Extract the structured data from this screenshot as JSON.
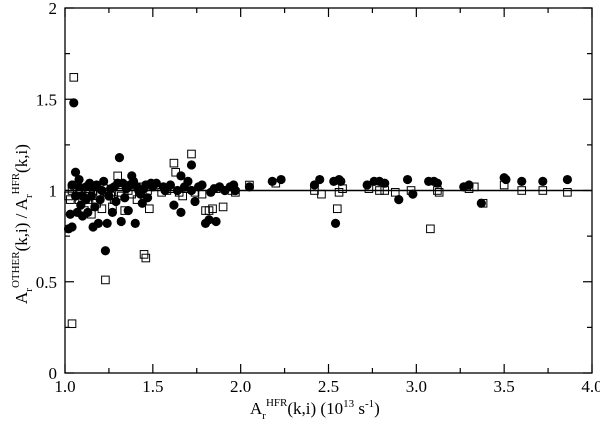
{
  "chart_data": {
    "type": "scatter",
    "title": "",
    "xlabel": {
      "base": "A",
      "sub": "r",
      "sup": "HFR",
      "tail": "(k,i) (10",
      "exp": "13",
      "units": " s",
      "units_exp": "-1",
      "close": ")"
    },
    "ylabel": {
      "a_base": "A",
      "a_sub": "r",
      "a_sup": "OTHER",
      "a_tail": "(k,i) / A",
      "b_sub": "r",
      "b_sup": "HFR",
      "b_tail": "(k,i)"
    },
    "xlim": [
      1.0,
      4.0
    ],
    "ylim": [
      0,
      2
    ],
    "xticks": [
      "1.0",
      "1.5",
      "2.0",
      "2.5",
      "3.0",
      "3.5",
      "4.0"
    ],
    "yticks": [
      "0",
      "0.5",
      "1",
      "1.5",
      "2"
    ],
    "reference_line_y": 1.0,
    "grid": false,
    "series": [
      {
        "marker": "filled-circle",
        "points": [
          [
            1.02,
            0.79
          ],
          [
            1.03,
            0.87
          ],
          [
            1.04,
            1.03
          ],
          [
            1.04,
            0.8
          ],
          [
            1.05,
            1.48
          ],
          [
            1.06,
            1.1
          ],
          [
            1.06,
            0.97
          ],
          [
            1.07,
            0.88
          ],
          [
            1.08,
            1.02
          ],
          [
            1.08,
            1.06
          ],
          [
            1.09,
            0.92
          ],
          [
            1.1,
            0.97
          ],
          [
            1.1,
            0.86
          ],
          [
            1.12,
            1.02
          ],
          [
            1.12,
            0.95
          ],
          [
            1.13,
            0.88
          ],
          [
            1.14,
            1.04
          ],
          [
            1.15,
            0.97
          ],
          [
            1.16,
            0.8
          ],
          [
            1.16,
            1.02
          ],
          [
            1.17,
            0.91
          ],
          [
            1.18,
            1.03
          ],
          [
            1.19,
            0.82
          ],
          [
            1.2,
            0.95
          ],
          [
            1.21,
            1.0
          ],
          [
            1.22,
            1.05
          ],
          [
            1.23,
            0.67
          ],
          [
            1.24,
            0.82
          ],
          [
            1.25,
            0.97
          ],
          [
            1.26,
            1.01
          ],
          [
            1.27,
            0.88
          ],
          [
            1.28,
            1.02
          ],
          [
            1.29,
            0.94
          ],
          [
            1.3,
            1.04
          ],
          [
            1.31,
            1.18
          ],
          [
            1.32,
            0.83
          ],
          [
            1.33,
            1.04
          ],
          [
            1.34,
            0.96
          ],
          [
            1.35,
            1.01
          ],
          [
            1.36,
            0.89
          ],
          [
            1.37,
            1.03
          ],
          [
            1.38,
            1.08
          ],
          [
            1.39,
            1.05
          ],
          [
            1.4,
            0.82
          ],
          [
            1.41,
            1.02
          ],
          [
            1.42,
            1.0
          ],
          [
            1.43,
            0.98
          ],
          [
            1.44,
            0.93
          ],
          [
            1.45,
            1.01
          ],
          [
            1.46,
            1.03
          ],
          [
            1.47,
            0.96
          ],
          [
            1.49,
            1.04
          ],
          [
            1.5,
            1.02
          ],
          [
            1.52,
            1.04
          ],
          [
            1.56,
            1.02
          ],
          [
            1.57,
            1.0
          ],
          [
            1.6,
            1.03
          ],
          [
            1.62,
            0.92
          ],
          [
            1.64,
            1.0
          ],
          [
            1.66,
            1.08
          ],
          [
            1.66,
            0.88
          ],
          [
            1.68,
            1.02
          ],
          [
            1.7,
            1.05
          ],
          [
            1.72,
            1.14
          ],
          [
            1.72,
            1.0
          ],
          [
            1.74,
            0.94
          ],
          [
            1.76,
            1.02
          ],
          [
            1.78,
            1.03
          ],
          [
            1.8,
            0.82
          ],
          [
            1.82,
            0.84
          ],
          [
            1.83,
            0.99
          ],
          [
            1.85,
            1.01
          ],
          [
            1.86,
            0.83
          ],
          [
            1.88,
            1.02
          ],
          [
            1.91,
            1.0
          ],
          [
            1.94,
            1.02
          ],
          [
            1.96,
            1.03
          ],
          [
            1.97,
            1.0
          ],
          [
            2.05,
            1.02
          ],
          [
            2.18,
            1.05
          ],
          [
            2.23,
            1.06
          ],
          [
            2.42,
            1.03
          ],
          [
            2.45,
            1.06
          ],
          [
            2.53,
            1.05
          ],
          [
            2.54,
            0.82
          ],
          [
            2.56,
            1.06
          ],
          [
            2.57,
            1.05
          ],
          [
            2.72,
            1.03
          ],
          [
            2.76,
            1.05
          ],
          [
            2.79,
            1.05
          ],
          [
            2.82,
            1.04
          ],
          [
            2.9,
            0.95
          ],
          [
            2.95,
            1.06
          ],
          [
            2.98,
            0.98
          ],
          [
            3.07,
            1.05
          ],
          [
            3.1,
            1.05
          ],
          [
            3.12,
            1.04
          ],
          [
            3.27,
            1.02
          ],
          [
            3.3,
            1.03
          ],
          [
            3.37,
            0.93
          ],
          [
            3.5,
            1.07
          ],
          [
            3.51,
            1.06
          ],
          [
            3.6,
            1.05
          ],
          [
            3.72,
            1.05
          ],
          [
            3.86,
            1.06
          ]
        ]
      },
      {
        "marker": "open-square",
        "points": [
          [
            1.02,
            0.97
          ],
          [
            1.03,
            0.95
          ],
          [
            1.04,
            0.27
          ],
          [
            1.04,
            1.0
          ],
          [
            1.05,
            1.62
          ],
          [
            1.06,
            1.03
          ],
          [
            1.07,
            0.99
          ],
          [
            1.08,
            0.95
          ],
          [
            1.09,
            1.01
          ],
          [
            1.1,
            0.96
          ],
          [
            1.11,
            0.89
          ],
          [
            1.12,
            1.01
          ],
          [
            1.13,
            0.95
          ],
          [
            1.14,
            0.98
          ],
          [
            1.15,
            0.87
          ],
          [
            1.16,
            1.0
          ],
          [
            1.18,
            0.93
          ],
          [
            1.19,
            0.98
          ],
          [
            1.2,
            0.99
          ],
          [
            1.21,
            0.9
          ],
          [
            1.22,
            1.01
          ],
          [
            1.23,
            0.51
          ],
          [
            1.24,
            0.99
          ],
          [
            1.26,
            0.97
          ],
          [
            1.27,
            0.91
          ],
          [
            1.28,
            0.95
          ],
          [
            1.3,
            1.08
          ],
          [
            1.31,
            0.99
          ],
          [
            1.32,
            0.97
          ],
          [
            1.34,
            0.89
          ],
          [
            1.36,
            1.0
          ],
          [
            1.38,
            0.98
          ],
          [
            1.41,
            0.95
          ],
          [
            1.42,
            1.02
          ],
          [
            1.44,
            0.99
          ],
          [
            1.45,
            0.65
          ],
          [
            1.46,
            0.63
          ],
          [
            1.47,
            1.0
          ],
          [
            1.48,
            0.9
          ],
          [
            1.55,
            0.99
          ],
          [
            1.58,
            1.0
          ],
          [
            1.6,
            1.01
          ],
          [
            1.62,
            1.15
          ],
          [
            1.63,
            1.1
          ],
          [
            1.65,
            0.99
          ],
          [
            1.67,
            0.97
          ],
          [
            1.69,
            1.01
          ],
          [
            1.72,
            1.2
          ],
          [
            1.74,
            0.99
          ],
          [
            1.78,
            0.98
          ],
          [
            1.8,
            0.89
          ],
          [
            1.82,
            0.89
          ],
          [
            1.84,
            0.9
          ],
          [
            1.86,
            1.01
          ],
          [
            1.9,
            0.91
          ],
          [
            1.95,
            1.0
          ],
          [
            1.97,
            0.99
          ],
          [
            2.05,
            1.03
          ],
          [
            2.2,
            1.04
          ],
          [
            2.42,
            1.0
          ],
          [
            2.46,
            0.98
          ],
          [
            2.55,
            0.9
          ],
          [
            2.56,
            0.99
          ],
          [
            2.58,
            1.01
          ],
          [
            2.73,
            1.01
          ],
          [
            2.79,
            1.0
          ],
          [
            2.82,
            1.0
          ],
          [
            2.88,
            0.99
          ],
          [
            2.97,
            1.0
          ],
          [
            3.08,
            0.79
          ],
          [
            3.12,
            1.0
          ],
          [
            3.13,
            0.99
          ],
          [
            3.3,
            1.01
          ],
          [
            3.33,
            1.02
          ],
          [
            3.38,
            0.93
          ],
          [
            3.5,
            1.03
          ],
          [
            3.6,
            1.0
          ],
          [
            3.72,
            1.0
          ],
          [
            3.86,
            0.99
          ]
        ]
      }
    ]
  }
}
